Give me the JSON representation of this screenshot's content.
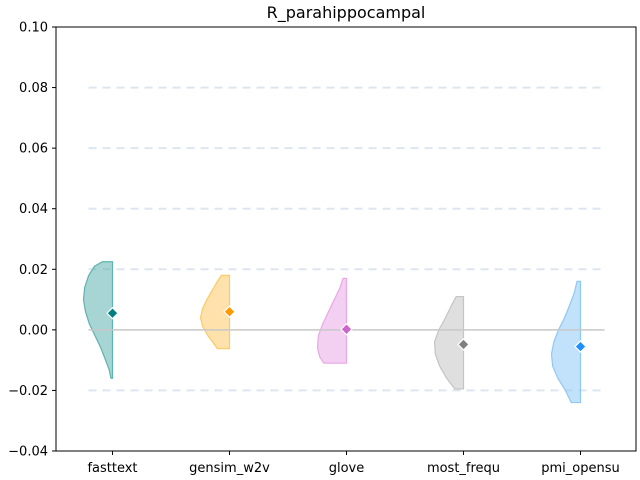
{
  "chart_data": {
    "type": "violin",
    "title": "R_parahippocampal",
    "xlabel": "",
    "ylabel": "",
    "ylim": [
      -0.04,
      0.1
    ],
    "yticks": [
      -0.04,
      -0.02,
      0.0,
      0.02,
      0.04,
      0.06,
      0.08,
      0.1
    ],
    "ytick_labels": [
      "−0.04",
      "−0.02",
      "0.00",
      "0.02",
      "0.04",
      "0.06",
      "0.08",
      "0.10"
    ],
    "grid_lines": [
      -0.02,
      0.02,
      0.04,
      0.06,
      0.08
    ],
    "zero_line": 0.0,
    "categories": [
      "fasttext",
      "gensim_w2v",
      "glove",
      "most_frequ",
      "pmi_opensu"
    ],
    "series": [
      {
        "category": "fasttext",
        "color": "#5fb3ae",
        "marker_color": "#008080",
        "mean": 0.0055,
        "range": [
          -0.016,
          0.0225
        ],
        "profile": [
          [
            0.0225,
            0.35
          ],
          [
            0.021,
            0.62
          ],
          [
            0.018,
            0.82
          ],
          [
            0.014,
            0.96
          ],
          [
            0.01,
            1.0
          ],
          [
            0.006,
            0.93
          ],
          [
            0.002,
            0.8
          ],
          [
            -0.002,
            0.6
          ],
          [
            -0.006,
            0.4
          ],
          [
            -0.01,
            0.24
          ],
          [
            -0.013,
            0.12
          ],
          [
            -0.016,
            0.05
          ]
        ]
      },
      {
        "category": "gensim_w2v",
        "color": "#ffc966",
        "marker_color": "#ff9900",
        "mean": 0.006,
        "range": [
          -0.0062,
          0.018
        ],
        "profile": [
          [
            0.018,
            0.28
          ],
          [
            0.016,
            0.42
          ],
          [
            0.013,
            0.6
          ],
          [
            0.01,
            0.78
          ],
          [
            0.007,
            0.93
          ],
          [
            0.004,
            1.0
          ],
          [
            0.001,
            0.92
          ],
          [
            -0.002,
            0.74
          ],
          [
            -0.004,
            0.58
          ],
          [
            -0.0062,
            0.42
          ]
        ]
      },
      {
        "category": "glove",
        "color": "#e9a8e6",
        "marker_color": "#cc66cc",
        "mean": 0.0002,
        "range": [
          -0.011,
          0.017
        ],
        "profile": [
          [
            0.017,
            0.12
          ],
          [
            0.014,
            0.22
          ],
          [
            0.01,
            0.42
          ],
          [
            0.006,
            0.62
          ],
          [
            0.002,
            0.82
          ],
          [
            -0.002,
            0.97
          ],
          [
            -0.006,
            1.0
          ],
          [
            -0.009,
            0.92
          ],
          [
            -0.011,
            0.78
          ]
        ]
      },
      {
        "category": "most_frequ",
        "color": "#c4c4c4",
        "marker_color": "#808080",
        "mean": -0.0048,
        "range": [
          -0.0195,
          0.011
        ],
        "profile": [
          [
            0.011,
            0.25
          ],
          [
            0.008,
            0.42
          ],
          [
            0.004,
            0.62
          ],
          [
            0.0,
            0.85
          ],
          [
            -0.004,
            1.0
          ],
          [
            -0.008,
            0.97
          ],
          [
            -0.012,
            0.82
          ],
          [
            -0.016,
            0.58
          ],
          [
            -0.0195,
            0.3
          ]
        ]
      },
      {
        "category": "pmi_opensu",
        "color": "#8fc8f8",
        "marker_color": "#1e90ff",
        "mean": -0.0055,
        "range": [
          -0.024,
          0.016
        ],
        "profile": [
          [
            0.016,
            0.12
          ],
          [
            0.012,
            0.22
          ],
          [
            0.008,
            0.38
          ],
          [
            0.004,
            0.55
          ],
          [
            0.0,
            0.76
          ],
          [
            -0.004,
            0.92
          ],
          [
            -0.008,
            1.0
          ],
          [
            -0.012,
            0.96
          ],
          [
            -0.016,
            0.78
          ],
          [
            -0.02,
            0.52
          ],
          [
            -0.024,
            0.32
          ]
        ]
      }
    ]
  }
}
